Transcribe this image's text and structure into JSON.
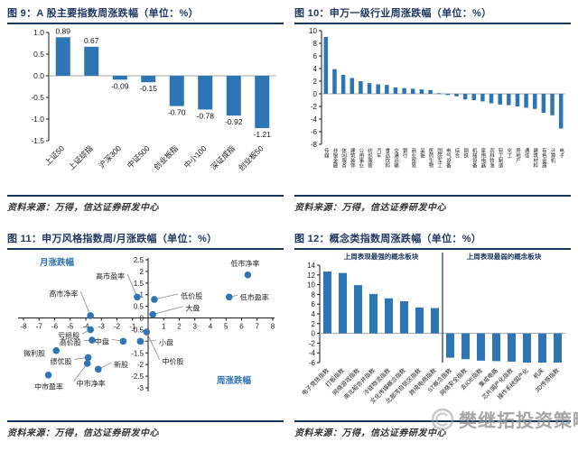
{
  "colors": {
    "bar": "#2E75B6",
    "navy": "#17365D",
    "title_text": "#1F3864",
    "source_text": "#333333",
    "axis_text": "#1a1a1a",
    "zero_line": "#a6a6a6",
    "blue_label": "#2E75B6",
    "leader_line": "#8a8a8a",
    "watermark": "#8f8f8f"
  },
  "watermark": {
    "text": "樊继拓投资策略"
  },
  "panels": [
    {
      "id": "fig9",
      "title": "图 9：A 股主要指数周涨跌幅（单位：%）",
      "source": "资料来源：万得，信达证券研发中心"
    },
    {
      "id": "fig10",
      "title": "图 10：申万一级行业周涨跌幅（单位：%）",
      "source": "资料来源：万得，信达证券研发中心"
    },
    {
      "id": "fig11",
      "title": "图 11：申万风格指数周/月涨跌幅（单位：%）",
      "source": "资料来源：万得，信达证券研发中心"
    },
    {
      "id": "fig12",
      "title": "图 12：概念类指数周涨跌幅（单位：%）",
      "source": "资料来源：万得，信达证券研发中心"
    }
  ],
  "chart_data": [
    {
      "id": "fig9",
      "type": "bar",
      "title": "A 股主要指数周涨跌幅",
      "unit": "%",
      "categories": [
        "上证50",
        "上证综指",
        "沪深300",
        "中证500",
        "创业板指",
        "中小100",
        "深证成指",
        "创业板50"
      ],
      "values": [
        0.89,
        0.67,
        -0.09,
        -0.15,
        -0.7,
        -0.78,
        -0.92,
        -1.21
      ],
      "value_labels": [
        "0.89",
        "0.67",
        "-0.09",
        "-0.15",
        "-0.70",
        "-0.78",
        "-0.92",
        "-1.21"
      ],
      "yticks": [
        "1.0",
        "0.5",
        "0.0",
        "-0.5",
        "-1.0",
        "-1.5"
      ],
      "ylim": [
        -1.5,
        1.0
      ],
      "grid": false,
      "legend": "none"
    },
    {
      "id": "fig10",
      "type": "bar",
      "title": "申万一级行业周涨跌幅",
      "unit": "%",
      "categories": [
        "传媒",
        "非银金融",
        "休闲服务",
        "建筑装饰",
        "公用事业",
        "纺织服装",
        "汽车",
        "食品饮料",
        "交通运输",
        "银行",
        "商业贸易",
        "采掘",
        "医药生物",
        "国防军工",
        "电气设备",
        "综合",
        "钢铁",
        "机械设备",
        "家用电器",
        "农林牧渔",
        "轻工制造",
        "化工",
        "房地产",
        "通信",
        "建筑材料",
        "有色金属",
        "计算机",
        "电子"
      ],
      "values": [
        9.0,
        3.9,
        3.0,
        2.5,
        2.0,
        1.7,
        1.5,
        1.4,
        1.0,
        0.9,
        0.8,
        0.7,
        0.6,
        0.1,
        -0.2,
        -0.4,
        -0.9,
        -1.0,
        -1.2,
        -1.5,
        -1.7,
        -1.8,
        -2.0,
        -2.2,
        -2.4,
        -3.0,
        -3.4,
        -5.5
      ],
      "yticks": [
        "10",
        "8",
        "6",
        "4",
        "2",
        "0",
        "-2",
        "-4",
        "-6",
        "-8"
      ],
      "ylim": [
        -8,
        10
      ],
      "grid": false,
      "legend": "none"
    },
    {
      "id": "fig11",
      "type": "scatter",
      "title": "申万风格指数周/月涨跌幅",
      "unit": "%",
      "xlabel": "周涨跌幅",
      "ylabel": "月涨跌幅",
      "xlim": [
        -8,
        8
      ],
      "ylim": [
        -3,
        2.5
      ],
      "xticks": [
        "-8",
        "-7",
        "-6",
        "-5",
        "-4",
        "-3",
        "-2",
        "-1",
        "1",
        "2",
        "3",
        "4",
        "5",
        "6",
        "7",
        "8"
      ],
      "yticks": [
        "2.5",
        "2",
        "1.5",
        "1",
        "0.5",
        "0",
        "-0.5",
        "-1",
        "-1.5",
        "-2",
        "-2.5",
        "-3"
      ],
      "points": [
        {
          "label": "低市净率",
          "x": 6.4,
          "y": 1.85,
          "lx": 5.3,
          "ly": 2.35,
          "anchor": "start",
          "leader": false
        },
        {
          "label": "低市盈率",
          "x": 5.2,
          "y": 0.9,
          "lx": 5.9,
          "ly": 0.9,
          "anchor": "start",
          "leader": true
        },
        {
          "label": "低价股",
          "x": 0.4,
          "y": 0.8,
          "lx": 2.1,
          "ly": 0.95,
          "anchor": "start",
          "leader": true
        },
        {
          "label": "大盘",
          "x": 0.3,
          "y": 0.15,
          "lx": 2.4,
          "ly": 0.42,
          "anchor": "start",
          "leader": true
        },
        {
          "label": "高市盈率",
          "x": -0.7,
          "y": 0.9,
          "lx": -1.5,
          "ly": 1.8,
          "anchor": "end",
          "leader": true
        },
        {
          "label": "高市净率",
          "x": -3.7,
          "y": 0.1,
          "lx": -4.5,
          "ly": 1.05,
          "anchor": "end",
          "leader": true
        },
        {
          "label": "亏损股",
          "x": -3.7,
          "y": -0.5,
          "lx": -4.4,
          "ly": -0.75,
          "anchor": "end",
          "leader": true
        },
        {
          "label": "高价股",
          "x": -3.6,
          "y": -0.95,
          "lx": -4.3,
          "ly": -1.05,
          "anchor": "end",
          "leader": true
        },
        {
          "label": "中盘",
          "x": -1.6,
          "y": -1.0,
          "lx": -2.5,
          "ly": -1.0,
          "anchor": "end",
          "leader": true
        },
        {
          "label": "小盘",
          "x": -0.5,
          "y": -1.0,
          "lx": 0.7,
          "ly": -1.05,
          "anchor": "start",
          "leader": true
        },
        {
          "label": "中价股",
          "x": -0.1,
          "y": -0.6,
          "lx": 0.9,
          "ly": -1.85,
          "anchor": "start",
          "leader": true
        },
        {
          "label": "微利股",
          "x": -5.9,
          "y": -1.4,
          "lx": -6.6,
          "ly": -1.5,
          "anchor": "end",
          "leader": false
        },
        {
          "label": "绩优股",
          "x": -3.85,
          "y": -1.7,
          "lx": -4.9,
          "ly": -1.85,
          "anchor": "end",
          "leader": true
        },
        {
          "label": "新股",
          "x": -3.2,
          "y": -2.2,
          "lx": -2.2,
          "ly": -2.0,
          "anchor": "start",
          "leader": true
        },
        {
          "label": "中市净率",
          "x": -3.9,
          "y": -1.95,
          "lx": -4.6,
          "ly": -2.8,
          "anchor": "start",
          "leader": true
        },
        {
          "label": "中市盈率",
          "x": -6.4,
          "y": -2.45,
          "lx": -7.3,
          "ly": -2.95,
          "anchor": "start",
          "leader": false
        }
      ],
      "grid": false,
      "legend": "none"
    },
    {
      "id": "fig12",
      "type": "bar",
      "title": "概念类指数周涨跌幅",
      "unit": "%",
      "group_labels": [
        "上周表现最强的概念板块",
        "上周表现最弱的概念板块"
      ],
      "divider_index": 8,
      "categories": [
        "电子竞技指数",
        "打板指数",
        "网络游戏指数",
        "南北船合并指数",
        "冷链物流指数",
        "文化传媒概念指数",
        "北部湾自贸区指数",
        "跨境电商指数",
        "ST概念指数",
        "网络安全指数",
        "去IOE指数",
        "集成电路",
        "芯片国产化指数",
        "操作系统国产化",
        "机床",
        "3D传感指数"
      ],
      "values": [
        12.7,
        12.4,
        9.9,
        8.1,
        7.2,
        6.6,
        5.3,
        5.2,
        -5.0,
        -5.3,
        -5.6,
        -5.7,
        -5.8,
        -6.0,
        -6.0,
        -6.0
      ],
      "yticks": [
        "14",
        "12",
        "10",
        "8",
        "6",
        "4",
        "2",
        "0",
        "-2",
        "-4",
        "-6"
      ],
      "ylim": [
        -6,
        14
      ],
      "grid": false,
      "legend": "none"
    }
  ]
}
